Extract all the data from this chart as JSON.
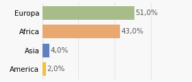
{
  "categories": [
    "America",
    "Asia",
    "Africa",
    "Europa"
  ],
  "values": [
    2.0,
    4.0,
    43.0,
    51.0
  ],
  "bar_colors": [
    "#f0c040",
    "#6080c0",
    "#e8a870",
    "#a8bc8a"
  ],
  "labels": [
    "2,0%",
    "4,0%",
    "43,0%",
    "51,0%"
  ],
  "xlim": [
    0,
    70
  ],
  "background_color": "#f8f8f8",
  "bar_height": 0.72,
  "label_fontsize": 7.5,
  "tick_fontsize": 7.5,
  "label_color": "#555555",
  "grid_color": "#e0e0e0"
}
